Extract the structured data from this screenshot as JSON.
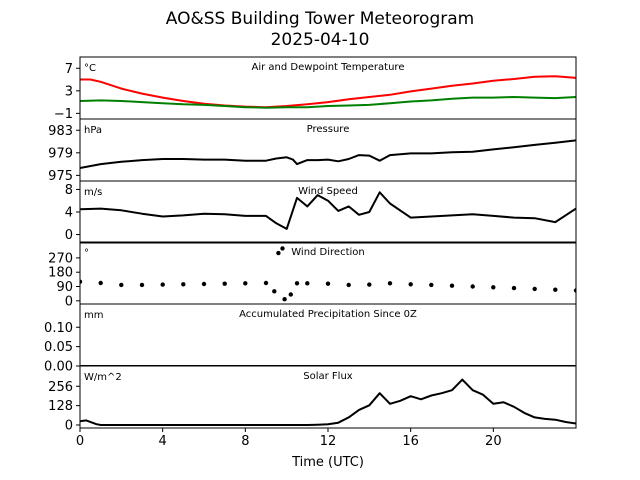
{
  "figure": {
    "title_line1": "AO&SS Building Tower Meteorogram",
    "title_line2": "2025-04-10",
    "xlabel": "Time (UTC)",
    "xlim": [
      0,
      24
    ],
    "x_ticks": [
      0,
      4,
      8,
      12,
      16,
      20
    ],
    "x_tick_labels": [
      "0",
      "4",
      "8",
      "12",
      "16",
      "20"
    ]
  },
  "chart_data": [
    {
      "type": "line",
      "title": "Air and Dewpoint Temperature",
      "unit": "°C",
      "ylim": [
        -2,
        9
      ],
      "y_ticks": [
        -1,
        3,
        7
      ],
      "y_tick_labels": [
        "−1",
        "3",
        "7"
      ],
      "series": [
        {
          "color": "#ff0000",
          "x": [
            0,
            0.5,
            1,
            2,
            3,
            4,
            5,
            6,
            7,
            8,
            9,
            10,
            11,
            12,
            13,
            14,
            15,
            16,
            17,
            18,
            19,
            20,
            21,
            22,
            23,
            24
          ],
          "y": [
            5.0,
            5.0,
            4.6,
            3.4,
            2.5,
            1.8,
            1.2,
            0.7,
            0.4,
            0.2,
            0.1,
            0.3,
            0.6,
            1.0,
            1.5,
            1.9,
            2.3,
            2.9,
            3.4,
            3.9,
            4.3,
            4.8,
            5.1,
            5.5,
            5.6,
            5.3
          ]
        },
        {
          "color": "#008000",
          "x": [
            0,
            1,
            2,
            3,
            4,
            5,
            6,
            7,
            8,
            9,
            10,
            11,
            12,
            13,
            14,
            15,
            16,
            17,
            18,
            19,
            20,
            21,
            22,
            23,
            24
          ],
          "y": [
            1.2,
            1.3,
            1.2,
            1.0,
            0.8,
            0.6,
            0.5,
            0.3,
            0.1,
            0.0,
            0.1,
            0.1,
            0.3,
            0.4,
            0.5,
            0.8,
            1.1,
            1.3,
            1.6,
            1.8,
            1.8,
            1.9,
            1.8,
            1.7,
            1.9
          ]
        }
      ]
    },
    {
      "type": "line",
      "title": "Pressure",
      "unit": "hPa",
      "ylim": [
        974,
        985
      ],
      "y_ticks": [
        975,
        979,
        983
      ],
      "y_tick_labels": [
        "975",
        "979",
        "983"
      ],
      "series": [
        {
          "color": "#000000",
          "x": [
            0,
            1,
            2,
            3,
            4,
            5,
            6,
            7,
            8,
            9,
            9.5,
            10,
            10.3,
            10.5,
            11,
            11.5,
            12,
            12.5,
            13,
            13.5,
            14,
            14.5,
            15,
            16,
            17,
            18,
            19,
            20,
            21,
            22,
            23,
            24
          ],
          "y": [
            976.3,
            977.0,
            977.4,
            977.7,
            977.9,
            977.9,
            977.8,
            977.8,
            977.6,
            977.6,
            978.0,
            978.2,
            977.8,
            977.0,
            977.7,
            977.7,
            977.8,
            977.5,
            977.9,
            978.6,
            978.5,
            977.6,
            978.6,
            978.9,
            978.9,
            979.1,
            979.2,
            979.6,
            980.0,
            980.4,
            980.8,
            981.2
          ]
        }
      ]
    },
    {
      "type": "line",
      "title": "Wind Speed",
      "unit": "m/s",
      "ylim": [
        -1.5,
        9.5
      ],
      "y_ticks": [
        0,
        4,
        8
      ],
      "y_tick_labels": [
        "0",
        "4",
        "8"
      ],
      "series": [
        {
          "color": "#000000",
          "x": [
            0,
            1,
            2,
            3,
            4,
            5,
            6,
            7,
            8,
            9,
            9.5,
            10,
            10.5,
            11,
            11.5,
            12,
            12.5,
            13,
            13.5,
            14,
            14.5,
            15,
            16,
            17,
            18,
            19,
            20,
            21,
            22,
            23,
            24
          ],
          "y": [
            4.5,
            4.6,
            4.3,
            3.7,
            3.2,
            3.4,
            3.7,
            3.6,
            3.3,
            3.3,
            2.0,
            1.0,
            6.5,
            5.0,
            7.0,
            6.0,
            4.2,
            5.0,
            3.5,
            4.0,
            7.5,
            5.5,
            3.0,
            3.2,
            3.4,
            3.6,
            3.3,
            3.0,
            2.9,
            2.2,
            4.6
          ]
        }
      ]
    },
    {
      "type": "scatter",
      "title": "Wind Direction",
      "unit": "°",
      "ylim": [
        -20,
        370
      ],
      "y_ticks": [
        0,
        90,
        180,
        270
      ],
      "y_tick_labels": [
        "0",
        "90",
        "180",
        "270"
      ],
      "series": [
        {
          "color": "#000000",
          "x": [
            0,
            1,
            2,
            3,
            4,
            5,
            6,
            7,
            8,
            9,
            9.4,
            9.6,
            9.8,
            9.9,
            10.2,
            10.5,
            11,
            12,
            13,
            14,
            15,
            16,
            17,
            18,
            19,
            20,
            21,
            22,
            23,
            24
          ],
          "y": [
            120,
            112,
            100,
            100,
            102,
            104,
            106,
            108,
            110,
            112,
            60,
            300,
            330,
            10,
            40,
            110,
            110,
            108,
            100,
            102,
            110,
            104,
            100,
            95,
            90,
            85,
            80,
            75,
            70,
            65
          ]
        }
      ]
    },
    {
      "type": "line",
      "title": "Accumulated Precipitation Since 0Z",
      "unit": "mm",
      "ylim": [
        0,
        0.16
      ],
      "y_ticks": [
        0.0,
        0.05,
        0.1
      ],
      "y_tick_labels": [
        "0.00",
        "0.05",
        "0.10"
      ],
      "series": [
        {
          "color": "#000000",
          "x": [
            0,
            24
          ],
          "y": [
            0,
            0
          ]
        }
      ]
    },
    {
      "type": "line",
      "title": "Solar Flux",
      "unit": "W/m^2",
      "ylim": [
        -20,
        390
      ],
      "y_ticks": [
        0,
        128,
        256
      ],
      "y_tick_labels": [
        "0",
        "128",
        "256"
      ],
      "series": [
        {
          "color": "#000000",
          "x": [
            0,
            0.3,
            0.8,
            1,
            2,
            3,
            4,
            5,
            6,
            7,
            8,
            9,
            10,
            11,
            11.5,
            12,
            12.5,
            13,
            13.5,
            14,
            14.5,
            15,
            15.5,
            16,
            16.5,
            17,
            17.5,
            18,
            18.5,
            19,
            19.5,
            20,
            20.5,
            21,
            21.5,
            22,
            22.5,
            23,
            23.5,
            24
          ],
          "y": [
            25,
            30,
            5,
            0,
            0,
            0,
            0,
            0,
            0,
            0,
            0,
            0,
            0,
            0,
            2,
            5,
            15,
            50,
            100,
            130,
            210,
            140,
            160,
            190,
            170,
            195,
            210,
            230,
            300,
            230,
            200,
            140,
            150,
            120,
            80,
            50,
            40,
            35,
            20,
            10
          ]
        }
      ]
    }
  ]
}
